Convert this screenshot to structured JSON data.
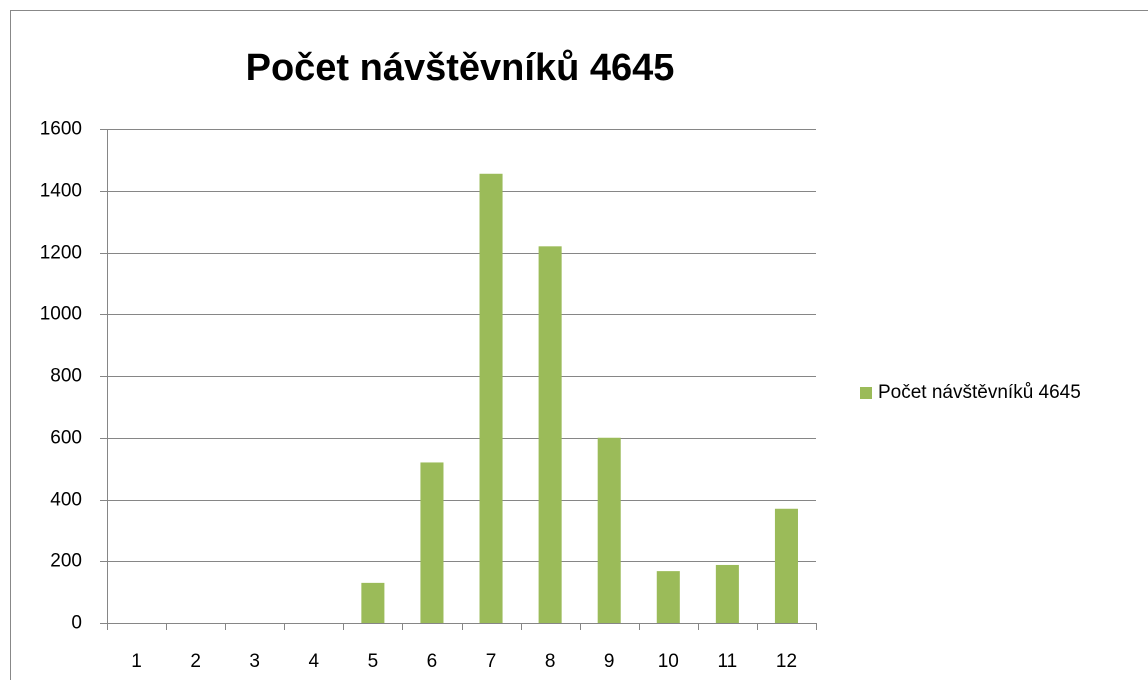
{
  "chart_data": {
    "type": "bar",
    "title": "Počet návštěvníků 4645",
    "categories": [
      "1",
      "2",
      "3",
      "4",
      "5",
      "6",
      "7",
      "8",
      "9",
      "10",
      "11",
      "12"
    ],
    "series": [
      {
        "name": "Počet návštěvníků 4645",
        "color": "#9bbb59",
        "values": [
          0,
          0,
          0,
          0,
          130,
          520,
          1455,
          1220,
          600,
          168,
          188,
          370
        ]
      }
    ],
    "ylim": [
      0,
      1600
    ],
    "yticks": [
      0,
      200,
      400,
      600,
      800,
      1000,
      1200,
      1400,
      1600
    ],
    "grid": true,
    "legend": "right"
  }
}
